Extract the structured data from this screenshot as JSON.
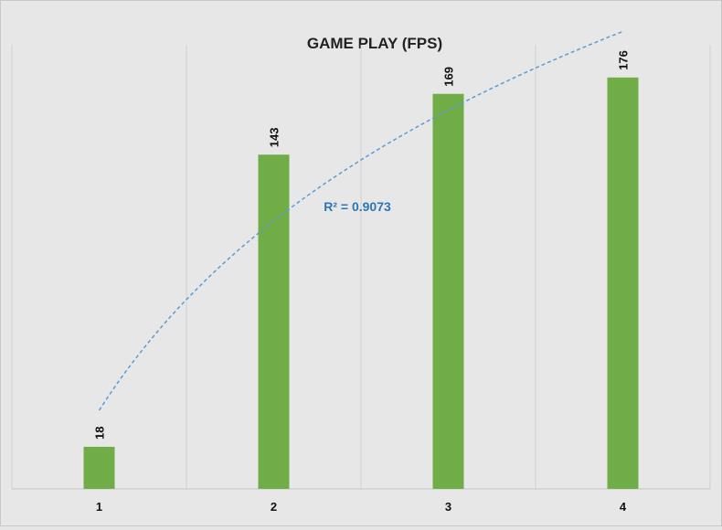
{
  "chart_data": {
    "type": "bar",
    "title": "GAME PLAY (FPS)",
    "xlabel": "",
    "ylabel": "",
    "categories": [
      "1",
      "2",
      "3",
      "4"
    ],
    "values": [
      18,
      143,
      169,
      176
    ],
    "data_labels": [
      "18",
      "143",
      "169",
      "176"
    ],
    "ylim": [
      0,
      190
    ],
    "grid": "vertical",
    "bar_color": "#70ad47",
    "trendline": {
      "type": "logarithmic",
      "color": "#5b9bd5",
      "label": "R² = 0.9073",
      "label_color": "#2e75b6"
    }
  }
}
